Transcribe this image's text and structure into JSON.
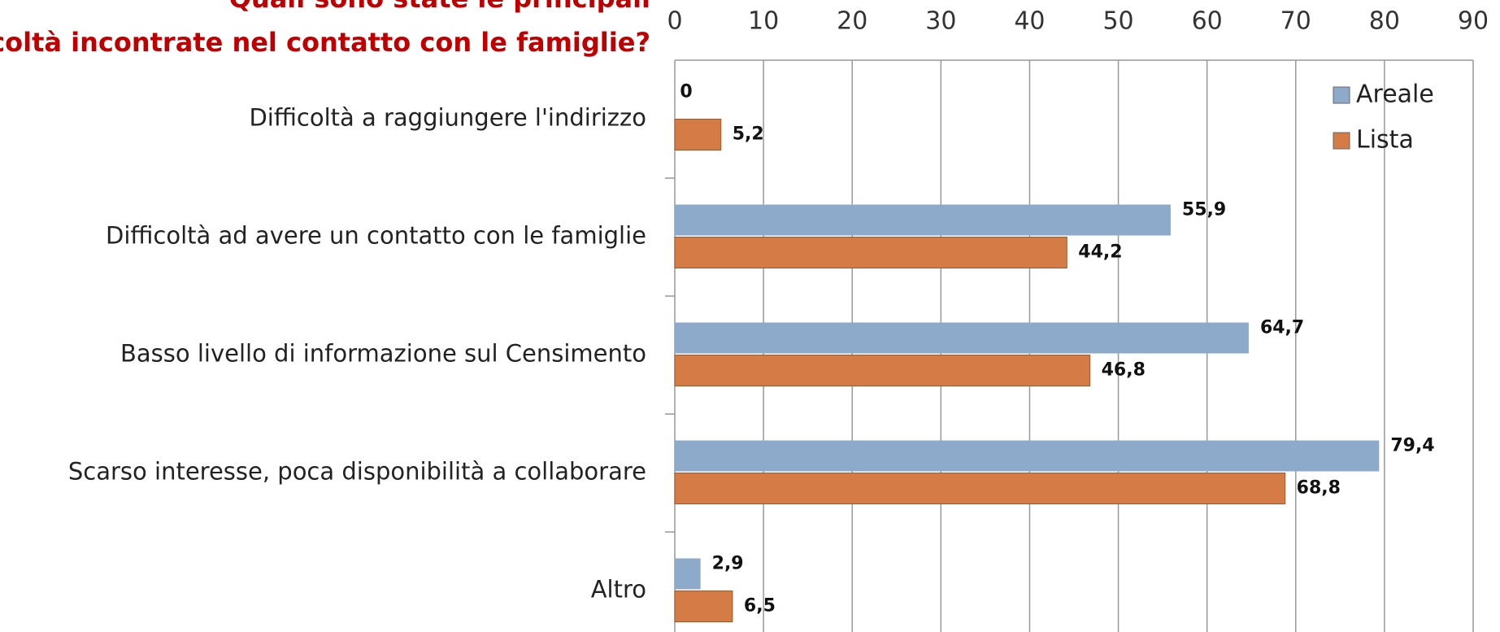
{
  "chart_data": {
    "type": "hbar",
    "title": "Quali sono state le principali difficoltà incontrate nel contatto con le famiglie?",
    "categories": [
      "Difficoltà a raggiungere l'indirizzo",
      "Difficoltà ad avere un contatto con le famiglie",
      "Basso livello di informazione sul Censimento",
      "Scarso interesse, poca disponibilità a collaborare",
      "Altro"
    ],
    "series": [
      {
        "name": "Areale",
        "color": "#8eaacb",
        "values": [
          0,
          55.9,
          64.7,
          79.4,
          2.9
        ],
        "value_labels": [
          "0",
          "55,9",
          "64,7",
          "79,4",
          "2,9"
        ]
      },
      {
        "name": "Lista",
        "color": "#d57b45",
        "values": [
          5.2,
          44.2,
          46.8,
          68.8,
          6.5
        ],
        "value_labels": [
          "5,2",
          "44,2",
          "46,8",
          "68,8",
          "6,5"
        ]
      }
    ],
    "xlim": [
      0,
      90
    ],
    "xticks": [
      0,
      10,
      20,
      30,
      40,
      50,
      60,
      70,
      80,
      90
    ],
    "grid": true,
    "legend": "top-right"
  }
}
